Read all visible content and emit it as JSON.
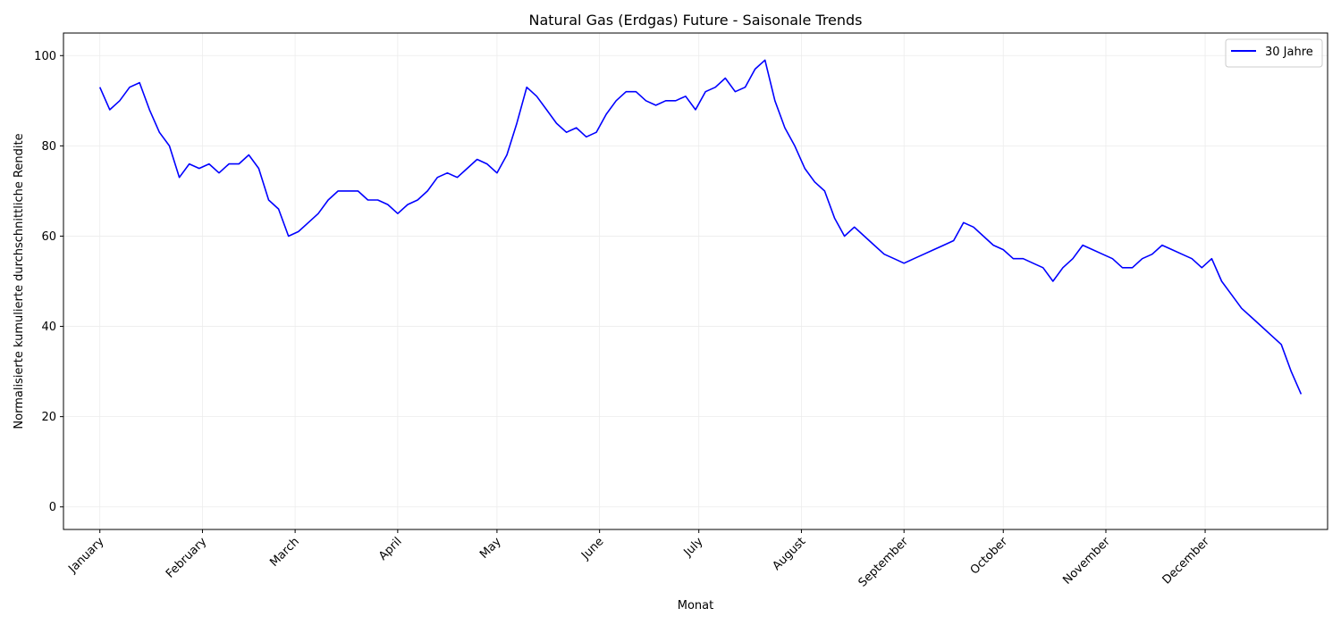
{
  "chart_data": {
    "type": "line",
    "title": "Natural Gas (Erdgas) Future - Saisonale Trends",
    "xlabel": "Monat",
    "ylabel": "Normalisierte kumulierte durchschnittliche Rendite",
    "ylim": [
      -5,
      105
    ],
    "yticks": [
      0,
      20,
      40,
      60,
      80,
      100
    ],
    "grid": true,
    "legend_position": "top-right",
    "x_unit": "day of year",
    "xlim": [
      -11,
      371
    ],
    "month_ticks": [
      {
        "label": "January",
        "day": 0
      },
      {
        "label": "February",
        "day": 31
      },
      {
        "label": "March",
        "day": 59
      },
      {
        "label": "April",
        "day": 90
      },
      {
        "label": "May",
        "day": 120
      },
      {
        "label": "June",
        "day": 151
      },
      {
        "label": "July",
        "day": 181
      },
      {
        "label": "August",
        "day": 212
      },
      {
        "label": "September",
        "day": 243
      },
      {
        "label": "October",
        "day": 273
      },
      {
        "label": "November",
        "day": 304
      },
      {
        "label": "December",
        "day": 334
      }
    ],
    "series": [
      {
        "name": "30 Jahre",
        "color": "#0000ff",
        "x": [
          0,
          3,
          6,
          9,
          12,
          15,
          18,
          21,
          24,
          27,
          30,
          33,
          36,
          39,
          42,
          45,
          48,
          51,
          54,
          57,
          60,
          63,
          66,
          69,
          72,
          75,
          78,
          81,
          84,
          87,
          90,
          93,
          96,
          99,
          102,
          105,
          108,
          111,
          114,
          117,
          120,
          123,
          126,
          129,
          132,
          135,
          138,
          141,
          144,
          147,
          150,
          153,
          156,
          159,
          162,
          165,
          168,
          171,
          174,
          177,
          180,
          183,
          186,
          189,
          192,
          195,
          198,
          201,
          204,
          207,
          210,
          213,
          216,
          219,
          222,
          225,
          228,
          231,
          234,
          237,
          240,
          243,
          246,
          249,
          252,
          255,
          258,
          261,
          264,
          267,
          270,
          273,
          276,
          279,
          282,
          285,
          288,
          291,
          294,
          297,
          300,
          303,
          306,
          309,
          312,
          315,
          318,
          321,
          324,
          327,
          330,
          333,
          336,
          339,
          342,
          345,
          348,
          351,
          354,
          357,
          360,
          363
        ],
        "y": [
          93,
          88,
          90,
          93,
          94,
          88,
          83,
          80,
          73,
          76,
          75,
          76,
          74,
          76,
          76,
          78,
          75,
          68,
          66,
          60,
          61,
          63,
          65,
          68,
          70,
          70,
          70,
          68,
          68,
          67,
          65,
          67,
          68,
          70,
          73,
          74,
          73,
          75,
          77,
          76,
          74,
          78,
          85,
          93,
          91,
          88,
          85,
          83,
          84,
          82,
          83,
          87,
          90,
          92,
          92,
          90,
          89,
          90,
          90,
          91,
          88,
          92,
          93,
          95,
          92,
          93,
          97,
          99,
          90,
          84,
          80,
          75,
          72,
          70,
          64,
          60,
          62,
          60,
          58,
          56,
          55,
          54,
          55,
          56,
          57,
          58,
          59,
          63,
          62,
          60,
          58,
          57,
          55,
          55,
          54,
          53,
          50,
          53,
          55,
          58,
          57,
          56,
          55,
          53,
          53,
          55,
          56,
          58,
          57,
          56,
          55,
          53,
          55,
          50,
          47,
          44,
          42,
          40,
          38,
          36,
          30,
          25
        ],
        "_note": ""
      }
    ]
  }
}
